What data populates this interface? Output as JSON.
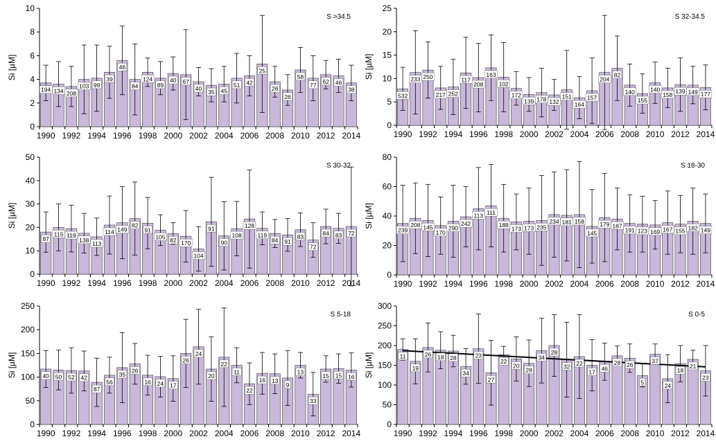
{
  "colors": {
    "bar": "#c9b8da",
    "bar_stroke": "#555555",
    "error": "#000000",
    "trend": "#000000"
  },
  "chart_data": [
    {
      "type": "bar",
      "title": "S >34.5",
      "ylabel": "Si [µM]",
      "ylim": [
        0,
        10
      ],
      "yticks": [
        "0",
        "2",
        "4",
        "6",
        "8",
        "10"
      ],
      "xticklabels": [
        "1990",
        "1992",
        "1994",
        "1996",
        "1998",
        "2000",
        "2002",
        "2004",
        "2006",
        "2008",
        "2010",
        "2012",
        "2014"
      ],
      "categories": [
        "1990",
        "1991",
        "1992",
        "1993",
        "1994",
        "1995",
        "1996",
        "1997",
        "1998",
        "1999",
        "2000",
        "2001",
        "2002",
        "2003",
        "2004",
        "2005",
        "2006",
        "2007",
        "2008",
        "2009",
        "2010",
        "2011",
        "2012",
        "2013",
        "2014"
      ],
      "values": [
        3.7,
        3.6,
        3.4,
        4.0,
        4.1,
        4.6,
        5.6,
        4.0,
        4.6,
        4.1,
        4.5,
        4.4,
        3.8,
        3.5,
        3.6,
        4.1,
        4.3,
        5.3,
        3.8,
        3.1,
        4.8,
        4.1,
        4.4,
        4.3,
        3.7
      ],
      "errors": [
        1.5,
        1.9,
        1.7,
        2.9,
        2.8,
        2.2,
        2.9,
        3.0,
        1.2,
        1.4,
        1.4,
        3.8,
        1.2,
        1.4,
        1.5,
        2.1,
        1.7,
        4.1,
        1.3,
        1.3,
        1.9,
        1.9,
        1.2,
        1.4,
        1.5
      ],
      "labels": [
        "194",
        "134",
        "208",
        "103",
        "99",
        "39",
        "46",
        "84",
        "124",
        "89",
        "40",
        "67",
        "40",
        "35",
        "45",
        "51",
        "42",
        "25",
        "26",
        "26",
        "58",
        "77",
        "62",
        "46",
        "38"
      ]
    },
    {
      "type": "bar",
      "title": "S 32-34.5",
      "ylabel": "Si [µM]",
      "ylim": [
        0,
        25
      ],
      "yticks": [
        "0",
        "5",
        "10",
        "15",
        "20",
        "25"
      ],
      "xticklabels": [
        "1990",
        "1992",
        "1994",
        "1996",
        "1998",
        "2000",
        "2002",
        "2004",
        "2006",
        "2008",
        "2010",
        "2012",
        "2014"
      ],
      "categories": [
        "1990",
        "1991",
        "1992",
        "1993",
        "1994",
        "1995",
        "1996",
        "1997",
        "1998",
        "1999",
        "2000",
        "2001",
        "2002",
        "2003",
        "2004",
        "2005",
        "2006",
        "2007",
        "2008",
        "2009",
        "2010",
        "2011",
        "2012",
        "2013",
        "2014"
      ],
      "values": [
        7.8,
        11.3,
        11.8,
        8.0,
        8.2,
        11.2,
        10.2,
        12.3,
        10.3,
        7.9,
        6.6,
        7.0,
        6.5,
        7.6,
        5.9,
        7.4,
        11.3,
        12.2,
        8.6,
        6.8,
        9.1,
        8.0,
        8.7,
        8.6,
        8.1
      ],
      "errors": [
        4.6,
        8.9,
        6.0,
        4.6,
        5.9,
        7.6,
        7.3,
        7.0,
        7.4,
        3.6,
        3.6,
        5.2,
        3.3,
        8.4,
        4.5,
        7.0,
        12.2,
        6.9,
        4.5,
        4.2,
        4.4,
        4.2,
        5.7,
        4.0,
        4.8
      ],
      "labels": [
        "532",
        "233",
        "250",
        "217",
        "252",
        "117",
        "208",
        "163",
        "102",
        "172",
        "139",
        "178",
        "132",
        "151",
        "164",
        "157",
        "204",
        "82",
        "140",
        "155",
        "140",
        "158",
        "139",
        "149",
        "177"
      ]
    },
    {
      "type": "bar",
      "title": "S 30-32",
      "ylabel": "Si [µM]",
      "ylim": [
        0,
        50
      ],
      "yticks": [
        "0",
        "10",
        "20",
        "30",
        "40",
        "50"
      ],
      "xticklabels": [
        "1990",
        "1992",
        "1994",
        "1996",
        "1998",
        "2000",
        "2002",
        "2004",
        "2006",
        "2008",
        "2010",
        "2012",
        "2014"
      ],
      "categories": [
        "1990",
        "1991",
        "1992",
        "1993",
        "1994",
        "1995",
        "1996",
        "1997",
        "1998",
        "1999",
        "2000",
        "2001",
        "2002",
        "2003",
        "2004",
        "2005",
        "2006",
        "2007",
        "2008",
        "2009",
        "2010",
        "2011",
        "2012",
        "2013",
        "2014"
      ],
      "values": [
        18,
        20,
        19.5,
        17.5,
        16,
        21,
        22,
        23.8,
        21.8,
        18.8,
        17.4,
        16.2,
        10.8,
        22.4,
        16.4,
        19.5,
        23.6,
        19.6,
        17.4,
        16.8,
        19,
        14.6,
        20.4,
        19.6,
        20.4
      ],
      "errors": [
        8.6,
        10,
        10,
        8.5,
        8,
        12.4,
        15.4,
        15.6,
        11,
        6.6,
        4.6,
        11,
        9.5,
        19,
        14.6,
        11.6,
        21,
        7,
        6,
        7,
        7.2,
        7.4,
        7.4,
        6.4,
        25.4
      ],
      "labels": [
        "87",
        "115",
        "119",
        "138",
        "113",
        "114",
        "149",
        "82",
        "91",
        "105",
        "82",
        "170",
        "104",
        "91",
        "90",
        "108",
        "128",
        "119",
        "84",
        "91",
        "83",
        "72",
        "84",
        "83",
        "72"
      ]
    },
    {
      "type": "bar",
      "title": "S 18-30",
      "ylabel": "Si [µM]",
      "ylim": [
        0,
        80
      ],
      "yticks": [
        "0",
        "20",
        "40",
        "60",
        "80"
      ],
      "xticklabels": [
        "1990",
        "1992",
        "1994",
        "1996",
        "1998",
        "2000",
        "2002",
        "2004",
        "2006",
        "2008",
        "2010",
        "2012",
        "2014"
      ],
      "categories": [
        "1990",
        "1991",
        "1992",
        "1993",
        "1994",
        "1995",
        "1996",
        "1997",
        "1998",
        "1999",
        "2000",
        "2001",
        "2002",
        "2003",
        "2004",
        "2005",
        "2006",
        "2007",
        "2008",
        "2009",
        "2010",
        "2011",
        "2012",
        "2013",
        "2014"
      ],
      "values": [
        35,
        38.5,
        37,
        33.5,
        36.5,
        39.5,
        45,
        47,
        38.5,
        36,
        36.5,
        37,
        41,
        40.5,
        41,
        33,
        39,
        38,
        35,
        34.5,
        34,
        35.5,
        34.5,
        36.5,
        35
      ],
      "errors": [
        26,
        24,
        24.5,
        19.5,
        24.5,
        20.5,
        28,
        28,
        23,
        19,
        22.5,
        30.5,
        29,
        31,
        36,
        25,
        30,
        21,
        19.5,
        19,
        16.5,
        21.5,
        19.5,
        22.5,
        20
      ],
      "labels": [
        "239",
        "208",
        "145",
        "170",
        "290",
        "242",
        "113",
        "111",
        "188",
        "173",
        "173",
        "235",
        "234",
        "181",
        "158",
        "145",
        "179",
        "187",
        "191",
        "123",
        "169",
        "167",
        "155",
        "182",
        "149"
      ]
    },
    {
      "type": "bar",
      "title": "S 5-18",
      "ylabel": "Si [µM]",
      "ylim": [
        0,
        250
      ],
      "yticks": [
        "0",
        "50",
        "100",
        "150",
        "200",
        "250"
      ],
      "xticklabels": [
        "1990",
        "1992",
        "1994",
        "1996",
        "1998",
        "2000",
        "2002",
        "2004",
        "2006",
        "2008",
        "2010",
        "2012",
        "2014"
      ],
      "categories": [
        "1990",
        "1991",
        "1992",
        "1993",
        "1994",
        "1995",
        "1996",
        "1997",
        "1998",
        "1999",
        "2000",
        "2001",
        "2002",
        "2003",
        "2004",
        "2005",
        "2006",
        "2007",
        "2008",
        "2009",
        "2010",
        "2011",
        "2012",
        "2013",
        "2014"
      ],
      "values": [
        117,
        115,
        114,
        113,
        89,
        104,
        120,
        128,
        104,
        101,
        97,
        150,
        164,
        117,
        142,
        125,
        86,
        108,
        107,
        98,
        125,
        64,
        117,
        118,
        115
      ],
      "errors": [
        39,
        42,
        48,
        42,
        51,
        38,
        74,
        43,
        42,
        43,
        48,
        72,
        79,
        68,
        104,
        37,
        44,
        44,
        42,
        58,
        27,
        46,
        28,
        31,
        36
      ],
      "labels": [
        "40",
        "50",
        "52",
        "42",
        "87",
        "56",
        "35",
        "26",
        "16",
        "24",
        "17",
        "26",
        "24",
        "20",
        "22",
        "11",
        "22",
        "16",
        "13",
        "9",
        "13",
        "33",
        "15",
        "15",
        "16"
      ]
    },
    {
      "type": "bar",
      "title": "S 0-5",
      "ylabel": "Si [µM]",
      "ylim": [
        0,
        300
      ],
      "yticks": [
        "0",
        "50",
        "100",
        "150",
        "200",
        "250",
        "300"
      ],
      "xticklabels": [
        "1990",
        "1992",
        "1994",
        "1996",
        "1998",
        "2000",
        "2002",
        "2004",
        "2006",
        "2008",
        "2010",
        "2012",
        "2014"
      ],
      "categories": [
        "1990",
        "1991",
        "1992",
        "1993",
        "1994",
        "1995",
        "1996",
        "1997",
        "1998",
        "1999",
        "2000",
        "2001",
        "2002",
        "2003",
        "2004",
        "2005",
        "2006",
        "2007",
        "2008",
        "2009",
        "2010",
        "2011",
        "2012",
        "2013",
        "2014"
      ],
      "values": [
        190,
        160,
        195,
        188,
        186,
        147,
        192,
        131,
        177,
        166,
        155,
        187,
        200,
        164,
        172,
        150,
        159,
        174,
        168,
        124,
        178,
        116,
        154,
        165,
        136
      ],
      "errors": [
        27,
        57,
        62,
        47,
        40,
        45,
        88,
        82,
        21,
        56,
        59,
        82,
        78,
        95,
        106,
        65,
        47,
        25,
        36,
        29,
        26,
        61,
        46,
        23,
        64
      ],
      "labels": [
        "11",
        "19",
        "26",
        "18",
        "28",
        "34",
        "23",
        "27",
        "22",
        "20",
        "28",
        "34",
        "28",
        "32",
        "22",
        "17",
        "46",
        "28",
        "26",
        "5",
        "37",
        "24",
        "18",
        "21",
        "23"
      ],
      "trend": [
        187,
        146
      ]
    }
  ]
}
